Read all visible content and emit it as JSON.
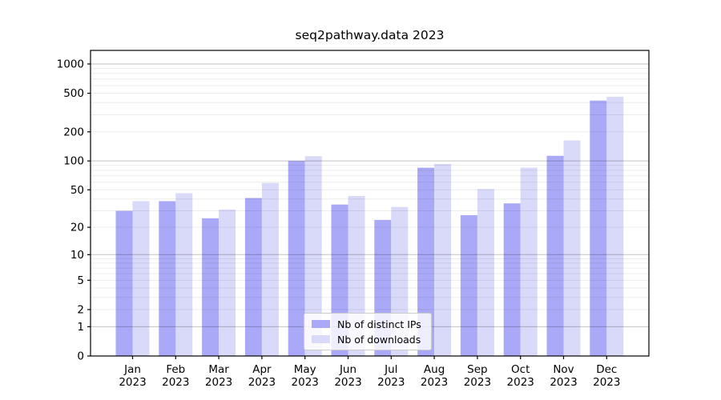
{
  "chart_data": {
    "type": "bar",
    "title": "seq2pathway.data 2023",
    "xlabel": "",
    "ylabel": "",
    "yscale": "log1p",
    "categories": [
      "Jan",
      "Feb",
      "Mar",
      "Apr",
      "May",
      "Jun",
      "Jul",
      "Aug",
      "Sep",
      "Oct",
      "Nov",
      "Dec"
    ],
    "x_tick_line2": "2023",
    "series": [
      {
        "name": "Nb of distinct IPs",
        "color": "#a9a9f7",
        "values": [
          30,
          38,
          25,
          41,
          100,
          35,
          24,
          85,
          27,
          36,
          113,
          420
        ]
      },
      {
        "name": "Nb of downloads",
        "color": "#d9d9f9",
        "values": [
          38,
          46,
          31,
          59,
          112,
          43,
          33,
          93,
          51,
          85,
          163,
          460
        ]
      }
    ],
    "y_tick_labels": [
      "1000",
      "500",
      "200",
      "100",
      "50",
      "20",
      "10",
      "5",
      "2",
      "1",
      "0"
    ],
    "y_tick_values": [
      1000,
      500,
      200,
      100,
      50,
      20,
      10,
      5,
      2,
      1,
      0
    ],
    "ylim": [
      0,
      1370
    ],
    "grid": "on",
    "grid_major_values": [
      1,
      10,
      100,
      1000
    ],
    "grid_minor_values": [
      2,
      3,
      4,
      5,
      6,
      7,
      8,
      9,
      20,
      30,
      40,
      50,
      60,
      70,
      80,
      90,
      200,
      300,
      400,
      500,
      600,
      700,
      800,
      900
    ],
    "grid_color": "#000000",
    "grid_major_alpha": 0.24,
    "grid_minor_alpha": 0.075,
    "axis_color": "#000000",
    "background_color": "#ffffff",
    "legend_position": "lower center inside"
  }
}
